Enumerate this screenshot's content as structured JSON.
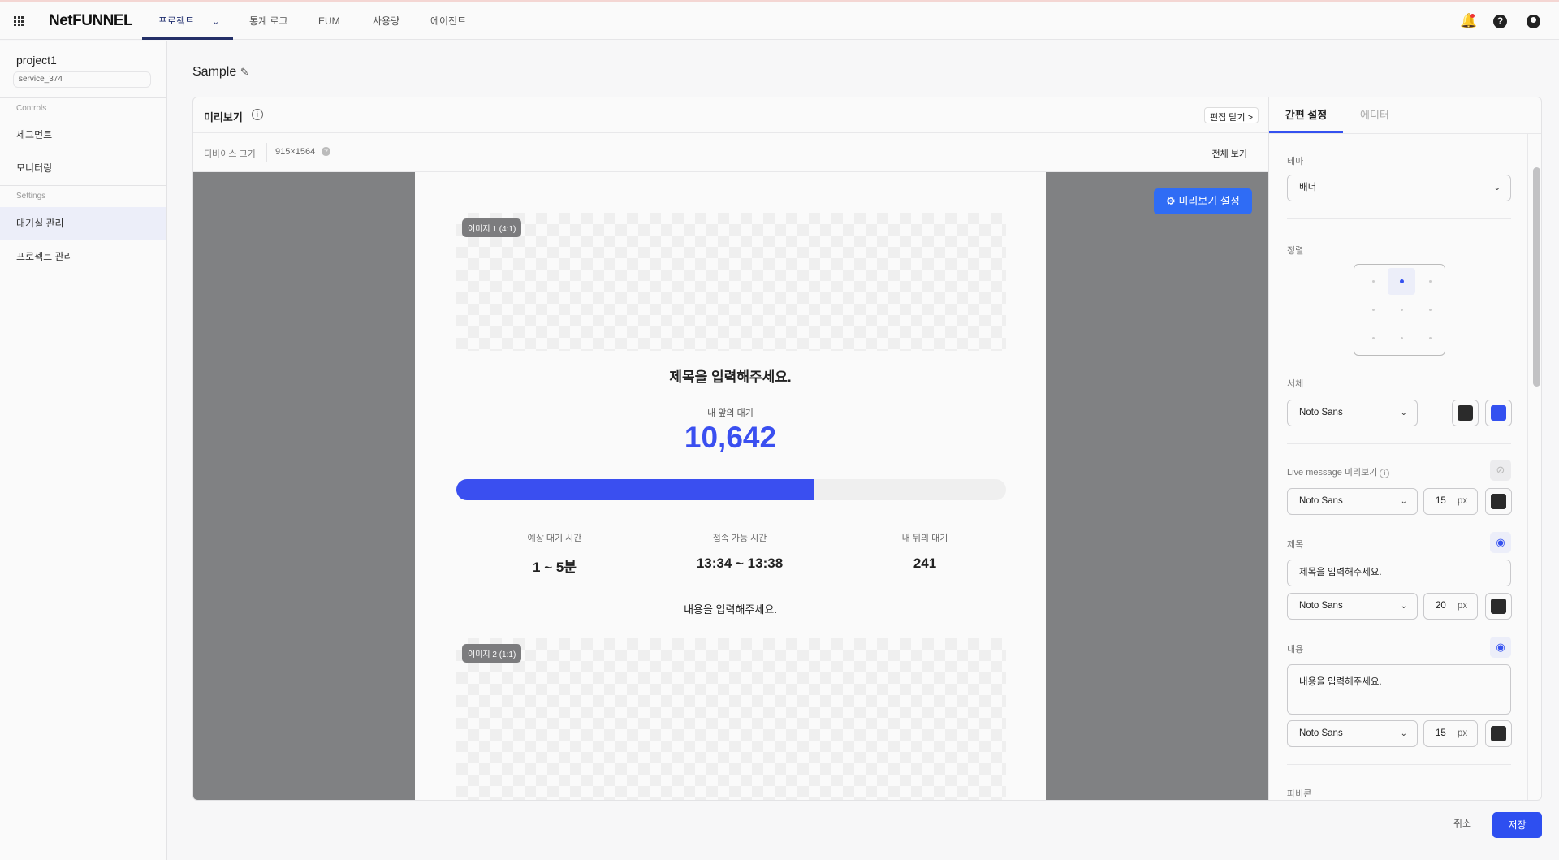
{
  "topnav": {
    "logo": "NetFUNNEL",
    "items": [
      {
        "label": "프로젝트",
        "active": true
      },
      {
        "label": "통계 로그"
      },
      {
        "label": "EUM"
      },
      {
        "label": "사용량"
      },
      {
        "label": "에이전트"
      }
    ],
    "icons": [
      "apps-grid-icon",
      "bell-icon",
      "help-icon",
      "account-icon"
    ]
  },
  "sidebar": {
    "project": "project1",
    "service": "service_374",
    "sections": [
      {
        "title": "Controls",
        "items": [
          "세그먼트",
          "모니터링"
        ]
      },
      {
        "title": "Settings",
        "items": [
          "대기실 관리",
          "프로젝트 관리"
        ]
      }
    ],
    "active_item": "대기실 관리"
  },
  "page": {
    "title": "Sample"
  },
  "preview": {
    "title": "미리보기",
    "close_edit": "편집 닫기",
    "device_label": "디바이스 크기",
    "device_size": "915×1564",
    "full_view": "전체 보기",
    "settings_button": "미리보기 설정",
    "image1_tag": "이미지 1 (4:1)",
    "image2_tag": "이미지 2 (1:1)",
    "heading": "제목을 입력해주세요.",
    "ahead_label": "내 앞의 대기",
    "ahead_count": "10,642",
    "progress": 0.65,
    "stats": [
      {
        "label": "예상 대기 시간",
        "value": "1 ~ 5분"
      },
      {
        "label": "접속 가능 시간",
        "value": "13:34 ~ 13:38"
      },
      {
        "label": "내 뒤의 대기",
        "value": "241"
      }
    ],
    "body": "내용을 입력해주세요."
  },
  "settings": {
    "tabs": [
      "간편 설정",
      "에디터"
    ],
    "active_tab": "간편 설정",
    "theme_label": "테마",
    "theme_value": "배너",
    "align_label": "정렬",
    "align_selected": "top-center",
    "font_label": "서체",
    "font_value": "Noto Sans",
    "font_color": "#2b2b2b",
    "accent_color": "#3451f0",
    "live_label": "Live message 미리보기",
    "live_visible": false,
    "live_font": "Noto Sans",
    "live_size": "15",
    "unit": "px",
    "live_color": "#2b2b2b",
    "title_label": "제목",
    "title_visible": true,
    "title_value": "제목을 입력해주세요.",
    "title_font": "Noto Sans",
    "title_size": "20",
    "title_color": "#2b2b2b",
    "content_label": "내용",
    "content_visible": true,
    "content_value": "내용을 입력해주세요.",
    "content_font": "Noto Sans",
    "content_size": "15",
    "content_color": "#2b2b2b",
    "favicon_label": "파비콘"
  },
  "footer": {
    "cancel": "취소",
    "save": "저장"
  },
  "colors": {
    "primary": "#2e4ff0",
    "progress": "#3a4ff0",
    "preview_button": "#2f6cf5"
  }
}
